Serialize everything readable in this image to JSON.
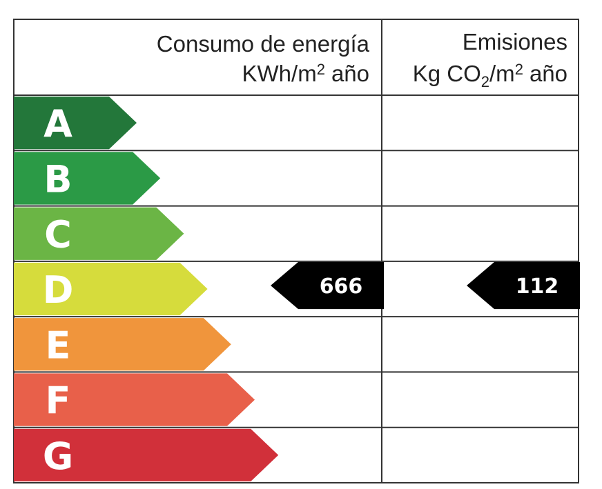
{
  "header": {
    "energy": {
      "line1": "Consumo de energía",
      "unit": [
        "KWh/m",
        "2",
        "año"
      ]
    },
    "emissions": {
      "line1": "Emisiones",
      "unit": [
        "Kg CO",
        "2",
        "/m",
        "2",
        "año"
      ]
    }
  },
  "ratings": [
    {
      "letter": "A",
      "color": "#23773a"
    },
    {
      "letter": "B",
      "color": "#2b9a46"
    },
    {
      "letter": "C",
      "color": "#6bb545"
    },
    {
      "letter": "D",
      "color": "#d6dc3c"
    },
    {
      "letter": "E",
      "color": "#f0953c"
    },
    {
      "letter": "F",
      "color": "#e8604a"
    },
    {
      "letter": "G",
      "color": "#d1303a"
    }
  ],
  "energy": {
    "rating": "D",
    "value": 666
  },
  "emissions": {
    "rating": "D",
    "value": 112
  }
}
